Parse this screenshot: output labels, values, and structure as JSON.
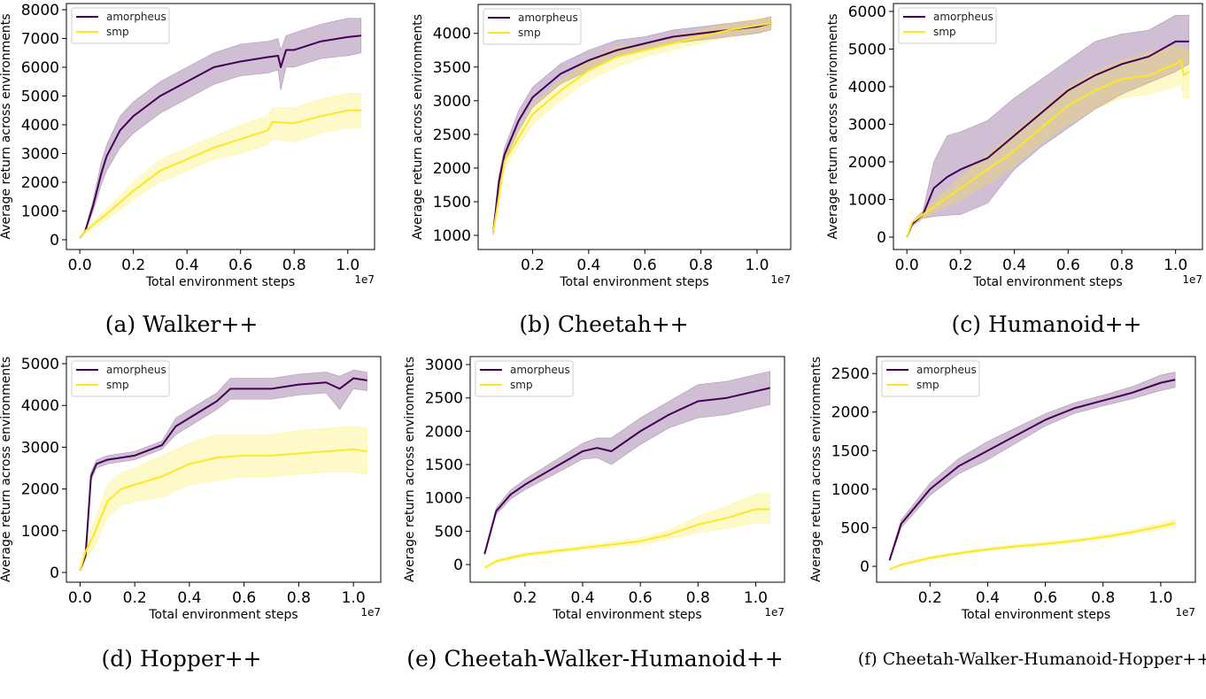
{
  "colors": {
    "amorpheus": "#440154",
    "smp": "#fde725"
  },
  "chart_data": [
    {
      "type": "line",
      "caption": "(a) Walker++",
      "xlabel": "Total environment steps",
      "x_offset_label": "1e7",
      "ylabel": "Average return across environments",
      "xlim": [
        -0.05,
        1.1
      ],
      "ylim": [
        -340,
        8215
      ],
      "xticks": [
        "0.0",
        "0.2",
        "0.4",
        "0.6",
        "0.8",
        "1.0"
      ],
      "yticks": [
        "0",
        "1000",
        "2000",
        "3000",
        "4000",
        "5000",
        "6000",
        "7000",
        "8000"
      ],
      "legend": "top-left",
      "series": [
        {
          "name": "amorpheus",
          "x": [
            0,
            0.02,
            0.05,
            0.08,
            0.1,
            0.15,
            0.2,
            0.3,
            0.4,
            0.5,
            0.6,
            0.7,
            0.74,
            0.75,
            0.77,
            0.8,
            0.9,
            1.0,
            1.05
          ],
          "y": [
            50,
            300,
            1200,
            2300,
            2900,
            3800,
            4300,
            5000,
            5500,
            6000,
            6200,
            6350,
            6400,
            6000,
            6600,
            6600,
            6900,
            7050,
            7100
          ],
          "lo": [
            50,
            250,
            1000,
            1900,
            2400,
            3200,
            3700,
            4400,
            4900,
            5400,
            5700,
            5800,
            5900,
            5200,
            6000,
            6000,
            6300,
            6400,
            6500
          ],
          "hi": [
            50,
            350,
            1400,
            2700,
            3300,
            4300,
            4800,
            5500,
            6000,
            6500,
            6800,
            6900,
            7000,
            6600,
            7100,
            7200,
            7500,
            7700,
            7700
          ]
        },
        {
          "name": "smp",
          "x": [
            0,
            0.02,
            0.1,
            0.2,
            0.3,
            0.4,
            0.5,
            0.6,
            0.7,
            0.72,
            0.8,
            0.9,
            1.0,
            1.05
          ],
          "y": [
            50,
            300,
            900,
            1700,
            2400,
            2800,
            3200,
            3500,
            3800,
            4100,
            4050,
            4300,
            4500,
            4500
          ],
          "lo": [
            50,
            250,
            700,
            1400,
            2000,
            2400,
            2800,
            3000,
            3300,
            3500,
            3400,
            3700,
            3900,
            3900
          ],
          "hi": [
            50,
            350,
            1100,
            2000,
            2800,
            3200,
            3600,
            4000,
            4300,
            4600,
            4600,
            4900,
            5100,
            5100
          ]
        }
      ]
    },
    {
      "type": "line",
      "caption": "(b) Cheetah++",
      "xlabel": "Total environment steps",
      "x_offset_label": "1e7",
      "ylabel": "Average return across environments",
      "xlim": [
        0.006,
        1.12
      ],
      "ylim": [
        790,
        4430
      ],
      "xticks": [
        "0.2",
        "0.4",
        "0.6",
        "0.8",
        "1.0"
      ],
      "yticks": [
        "1000",
        "1500",
        "2000",
        "2500",
        "3000",
        "3500",
        "4000"
      ],
      "legend": "top-left",
      "series": [
        {
          "name": "amorpheus",
          "x": [
            0.06,
            0.08,
            0.1,
            0.15,
            0.2,
            0.3,
            0.4,
            0.5,
            0.6,
            0.7,
            0.8,
            0.9,
            1.0,
            1.05
          ],
          "y": [
            1050,
            1800,
            2200,
            2700,
            3050,
            3400,
            3600,
            3750,
            3850,
            3950,
            4000,
            4050,
            4100,
            4150
          ],
          "lo": [
            1000,
            1700,
            2100,
            2550,
            2900,
            3250,
            3450,
            3650,
            3750,
            3850,
            3900,
            3950,
            4000,
            4050
          ],
          "hi": [
            1100,
            1900,
            2300,
            2850,
            3200,
            3550,
            3750,
            3900,
            3950,
            4050,
            4100,
            4150,
            4200,
            4250
          ]
        },
        {
          "name": "smp",
          "x": [
            0.06,
            0.1,
            0.2,
            0.3,
            0.4,
            0.5,
            0.6,
            0.7,
            0.8,
            0.9,
            1.05
          ],
          "y": [
            1050,
            2100,
            2800,
            3150,
            3450,
            3650,
            3750,
            3850,
            3950,
            4050,
            4150
          ],
          "lo": [
            1000,
            2000,
            2650,
            3000,
            3300,
            3500,
            3650,
            3750,
            3850,
            3950,
            4050
          ],
          "hi": [
            1100,
            2200,
            2950,
            3300,
            3600,
            3800,
            3850,
            3950,
            4050,
            4150,
            4250
          ]
        }
      ]
    },
    {
      "type": "line",
      "caption": "(c) Humanoid++",
      "xlabel": "Total environment steps",
      "x_offset_label": "1e7",
      "ylabel": "Average return across environments",
      "xlim": [
        -0.05,
        1.1
      ],
      "ylim": [
        -330,
        6210
      ],
      "xticks": [
        "0.0",
        "0.2",
        "0.4",
        "0.6",
        "0.8",
        "1.0"
      ],
      "yticks": [
        "0",
        "1000",
        "2000",
        "3000",
        "4000",
        "5000",
        "6000"
      ],
      "legend": "top-left",
      "series": [
        {
          "name": "amorpheus",
          "x": [
            0,
            0.02,
            0.06,
            0.1,
            0.15,
            0.2,
            0.3,
            0.4,
            0.5,
            0.6,
            0.7,
            0.8,
            0.9,
            1.0,
            1.05
          ],
          "y": [
            0,
            350,
            600,
            1300,
            1600,
            1800,
            2100,
            2700,
            3300,
            3900,
            4300,
            4600,
            4800,
            5200,
            5200
          ],
          "lo": [
            0,
            300,
            500,
            550,
            580,
            600,
            900,
            1800,
            2400,
            2900,
            3400,
            3800,
            4100,
            4400,
            4600
          ],
          "hi": [
            0,
            400,
            700,
            2000,
            2700,
            2800,
            3100,
            3700,
            4200,
            4700,
            5200,
            5400,
            5500,
            5900,
            5900
          ]
        },
        {
          "name": "smp",
          "x": [
            0,
            0.02,
            0.1,
            0.2,
            0.3,
            0.4,
            0.5,
            0.6,
            0.7,
            0.8,
            0.9,
            1.0,
            1.02,
            1.03,
            1.05
          ],
          "y": [
            0,
            400,
            800,
            1300,
            1800,
            2300,
            2900,
            3500,
            3900,
            4200,
            4300,
            4600,
            4700,
            4300,
            4400
          ],
          "lo": [
            0,
            350,
            650,
            1000,
            1400,
            1900,
            2500,
            3000,
            3400,
            3700,
            3800,
            4000,
            4100,
            3700,
            3700
          ],
          "hi": [
            0,
            450,
            950,
            1600,
            2200,
            2800,
            3400,
            4000,
            4400,
            4700,
            4900,
            5100,
            5100,
            5000,
            5000
          ]
        }
      ]
    },
    {
      "type": "line",
      "caption": "(d) Hopper++",
      "xlabel": "Total environment steps",
      "x_offset_label": "1e7",
      "ylabel": "Average return across environments",
      "xlim": [
        -0.05,
        1.1
      ],
      "ylim": [
        -233,
        5170
      ],
      "xticks": [
        "0.0",
        "0.2",
        "0.4",
        "0.6",
        "0.8",
        "1.0"
      ],
      "yticks": [
        "0",
        "1000",
        "2000",
        "3000",
        "4000",
        "5000"
      ],
      "legend": "top-left",
      "series": [
        {
          "name": "amorpheus",
          "x": [
            0,
            0.02,
            0.04,
            0.06,
            0.1,
            0.2,
            0.3,
            0.35,
            0.4,
            0.5,
            0.55,
            0.6,
            0.7,
            0.8,
            0.9,
            0.95,
            1.0,
            1.05
          ],
          "y": [
            50,
            400,
            2300,
            2600,
            2700,
            2800,
            3050,
            3500,
            3700,
            4100,
            4400,
            4400,
            4400,
            4500,
            4550,
            4400,
            4650,
            4600
          ],
          "lo": [
            50,
            350,
            2200,
            2500,
            2600,
            2700,
            2950,
            3300,
            3500,
            3900,
            4150,
            4150,
            4150,
            4250,
            4300,
            3900,
            4400,
            4350
          ],
          "hi": [
            50,
            450,
            2400,
            2700,
            2800,
            2900,
            3150,
            3700,
            3900,
            4300,
            4650,
            4650,
            4650,
            4750,
            4800,
            4700,
            4850,
            4800
          ]
        },
        {
          "name": "smp",
          "x": [
            0,
            0.02,
            0.05,
            0.1,
            0.15,
            0.2,
            0.3,
            0.4,
            0.5,
            0.6,
            0.7,
            0.8,
            0.9,
            1.0,
            1.05
          ],
          "y": [
            50,
            500,
            900,
            1700,
            2000,
            2100,
            2300,
            2600,
            2750,
            2800,
            2800,
            2850,
            2900,
            2950,
            2900
          ],
          "lo": [
            50,
            300,
            600,
            1300,
            1600,
            1700,
            1800,
            2100,
            2200,
            2300,
            2300,
            2350,
            2400,
            2400,
            2350
          ],
          "hi": [
            50,
            700,
            1200,
            2100,
            2400,
            2500,
            2800,
            3100,
            3300,
            3300,
            3300,
            3400,
            3450,
            3500,
            3450
          ]
        }
      ]
    },
    {
      "type": "line",
      "caption": "(e) Cheetah-Walker-Humanoid++",
      "xlabel": "Total environment steps",
      "x_offset_label": "1e7",
      "ylabel": "Average return across environments",
      "xlim": [
        0.01,
        1.1
      ],
      "ylim": [
        -265,
        3120
      ],
      "xticks": [
        "0.2",
        "0.4",
        "0.6",
        "0.8",
        "1.0"
      ],
      "yticks": [
        "0",
        "500",
        "1000",
        "1500",
        "2000",
        "2500",
        "3000"
      ],
      "legend": "top-left",
      "series": [
        {
          "name": "amorpheus",
          "x": [
            0.06,
            0.1,
            0.15,
            0.2,
            0.3,
            0.4,
            0.45,
            0.5,
            0.6,
            0.7,
            0.8,
            0.9,
            1.0,
            1.05
          ],
          "y": [
            160,
            800,
            1050,
            1200,
            1450,
            1700,
            1750,
            1700,
            2000,
            2250,
            2450,
            2500,
            2600,
            2650
          ],
          "lo": [
            140,
            750,
            980,
            1120,
            1350,
            1580,
            1600,
            1500,
            1800,
            2050,
            2200,
            2250,
            2350,
            2400
          ],
          "hi": [
            180,
            850,
            1120,
            1280,
            1550,
            1820,
            1900,
            1900,
            2200,
            2450,
            2700,
            2750,
            2850,
            2900
          ]
        },
        {
          "name": "smp",
          "x": [
            0.06,
            0.1,
            0.2,
            0.3,
            0.4,
            0.5,
            0.6,
            0.7,
            0.8,
            0.9,
            1.0,
            1.05
          ],
          "y": [
            -50,
            50,
            150,
            200,
            250,
            300,
            350,
            450,
            600,
            700,
            830,
            830
          ],
          "lo": [
            -60,
            30,
            120,
            170,
            220,
            260,
            300,
            380,
            480,
            540,
            620,
            620
          ],
          "hi": [
            -40,
            70,
            180,
            230,
            280,
            340,
            400,
            520,
            720,
            880,
            1060,
            1060
          ]
        }
      ]
    },
    {
      "type": "line",
      "caption": "(f) Cheetah-Walker-Humanoid-Hopper++",
      "xlabel": "Total environment steps",
      "x_offset_label": "1e7",
      "ylabel": "Average return across environments",
      "xlim": [
        0.015,
        1.12
      ],
      "ylim": [
        -206,
        2720
      ],
      "xticks": [
        "0.2",
        "0.4",
        "0.6",
        "0.8",
        "1.0"
      ],
      "yticks": [
        "0",
        "500",
        "1000",
        "1500",
        "2000",
        "2500"
      ],
      "legend": "top-left",
      "series": [
        {
          "name": "amorpheus",
          "x": [
            0.06,
            0.1,
            0.2,
            0.3,
            0.4,
            0.5,
            0.6,
            0.7,
            0.8,
            0.9,
            1.0,
            1.05
          ],
          "y": [
            80,
            550,
            1000,
            1300,
            1500,
            1700,
            1900,
            2050,
            2150,
            2250,
            2380,
            2420
          ],
          "lo": [
            60,
            500,
            920,
            1200,
            1380,
            1600,
            1820,
            1980,
            2080,
            2170,
            2280,
            2320
          ],
          "hi": [
            100,
            600,
            1080,
            1400,
            1620,
            1800,
            1980,
            2120,
            2220,
            2330,
            2480,
            2520
          ]
        },
        {
          "name": "smp",
          "x": [
            0.06,
            0.1,
            0.2,
            0.3,
            0.4,
            0.5,
            0.6,
            0.7,
            0.8,
            0.9,
            1.0,
            1.05
          ],
          "y": [
            -40,
            20,
            110,
            170,
            220,
            260,
            290,
            330,
            380,
            440,
            520,
            560
          ],
          "lo": [
            -50,
            5,
            90,
            150,
            200,
            235,
            265,
            305,
            350,
            405,
            480,
            510
          ],
          "hi": [
            -30,
            35,
            130,
            190,
            240,
            285,
            315,
            355,
            410,
            475,
            560,
            610
          ]
        }
      ]
    }
  ]
}
